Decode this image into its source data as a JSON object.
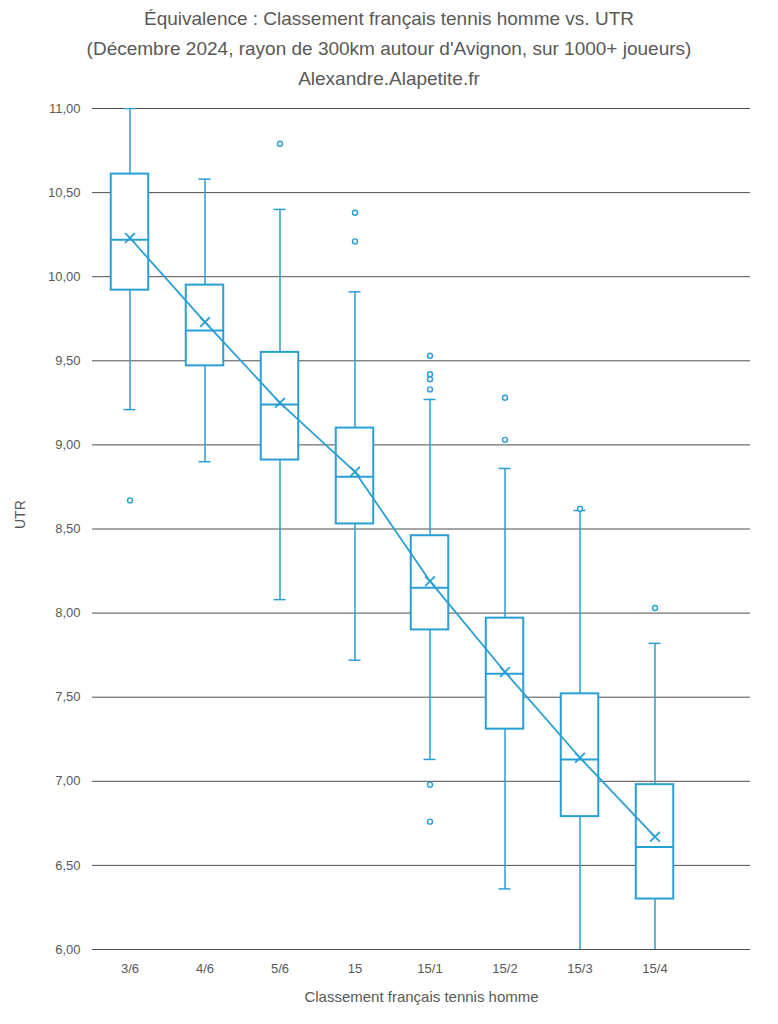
{
  "chart_data": {
    "type": "box",
    "title": "Équivalence : Classement français tennis homme vs. UTR",
    "subtitle": "(Décembre 2024, rayon de 300km autour d'Avignon, sur 1000+ joueurs)",
    "annotations": [
      "Alexandre.Alapetite.fr"
    ],
    "x_label": "Classement français tennis homme",
    "y_label": "UTR",
    "categories": [
      "3/6",
      "4/6",
      "5/6",
      "15",
      "15/1",
      "15/2",
      "15/3",
      "15/4"
    ],
    "whisker_low": [
      9.21,
      8.9,
      8.08,
      7.72,
      7.13,
      6.36,
      5.95,
      5.95
    ],
    "q1": [
      9.92,
      9.47,
      8.91,
      8.53,
      7.9,
      7.31,
      6.79,
      6.3
    ],
    "median": [
      10.22,
      9.68,
      9.24,
      8.81,
      8.15,
      7.64,
      7.13,
      6.61
    ],
    "q3": [
      10.61,
      9.95,
      9.55,
      9.1,
      8.46,
      7.97,
      7.52,
      6.98
    ],
    "whisker_high": [
      11.0,
      10.58,
      10.4,
      9.91,
      9.27,
      8.86,
      8.61,
      7.82
    ],
    "mean": [
      10.23,
      9.73,
      9.25,
      8.84,
      8.19,
      7.65,
      7.14,
      6.67
    ],
    "outliers": [
      [
        8.67
      ],
      [],
      [
        10.79
      ],
      [
        10.38,
        10.21
      ],
      [
        9.53,
        9.42,
        9.39,
        9.33,
        6.98,
        6.76
      ],
      [
        9.28,
        9.03
      ],
      [
        8.62
      ],
      [
        8.03
      ]
    ],
    "color": "#2a9fd6",
    "marker": "x",
    "ylim": [
      6,
      11
    ],
    "yticks": [
      {
        "value": 6,
        "label": "6,00"
      },
      {
        "value": 6.5,
        "label": "6,50"
      },
      {
        "value": 7,
        "label": "7,00"
      },
      {
        "value": 7.5,
        "label": "7,50"
      },
      {
        "value": 8,
        "label": "8,00"
      },
      {
        "value": 8.5,
        "label": "8,50"
      },
      {
        "value": 9,
        "label": "9,00"
      },
      {
        "value": 9.5,
        "label": "9,50"
      },
      {
        "value": 10,
        "label": "10,00"
      },
      {
        "value": 10.5,
        "label": "10,50"
      },
      {
        "value": 11,
        "label": "11,00"
      }
    ],
    "grid": true
  }
}
